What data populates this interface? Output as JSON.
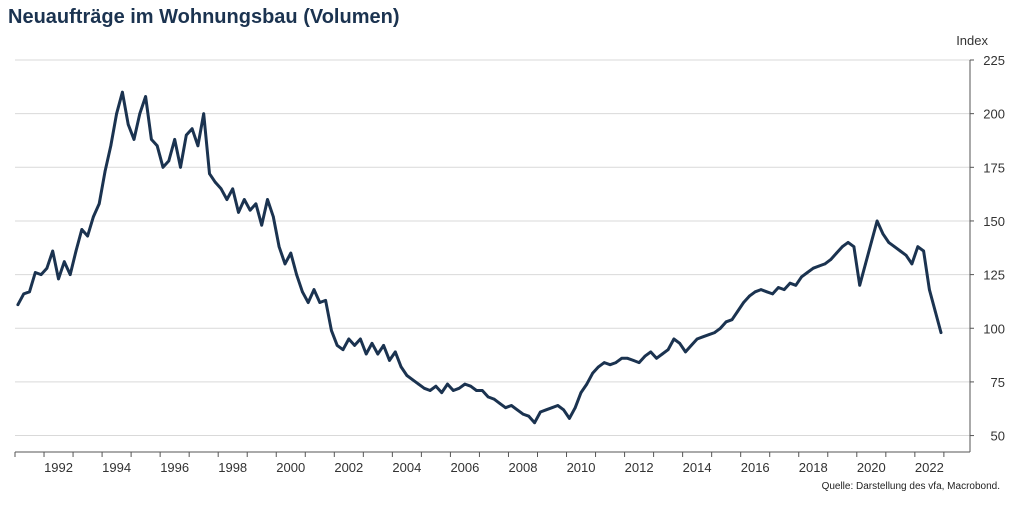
{
  "title": "Neuaufträge im Wohnungsbau (Volumen)",
  "source": "Quelle: Darstellung des vfa, Macrobond.",
  "colors": {
    "line": "#1b3350",
    "grid": "#d9d9d9",
    "title": "#1b3350"
  },
  "chart_data": {
    "type": "line",
    "title": "Neuaufträge im Wohnungsbau (Volumen)",
    "ylabel": "Index",
    "xlabel": "",
    "xlim": [
      1991.0,
      2023.9
    ],
    "ylim": [
      47,
      225
    ],
    "yticks": [
      "225",
      "200",
      "175",
      "150",
      "125",
      "100",
      "75",
      "50"
    ],
    "xticks": [
      "1992",
      "1994",
      "1996",
      "1998",
      "2000",
      "2002",
      "2004",
      "2006",
      "2008",
      "2010",
      "2012",
      "2014",
      "2016",
      "2018",
      "2020",
      "2022"
    ],
    "grid": true,
    "legend": "none",
    "series": [
      {
        "name": "",
        "x": [
          1991.1,
          1991.3,
          1991.5,
          1991.7,
          1991.9,
          1992.1,
          1992.3,
          1992.5,
          1992.7,
          1992.9,
          1993.1,
          1993.3,
          1993.5,
          1993.7,
          1993.9,
          1994.1,
          1994.3,
          1994.5,
          1994.7,
          1994.9,
          1995.1,
          1995.3,
          1995.5,
          1995.7,
          1995.9,
          1996.1,
          1996.3,
          1996.5,
          1996.7,
          1996.9,
          1997.1,
          1997.3,
          1997.5,
          1997.7,
          1997.9,
          1998.1,
          1998.3,
          1998.5,
          1998.7,
          1998.9,
          1999.1,
          1999.3,
          1999.5,
          1999.7,
          1999.9,
          2000.1,
          2000.3,
          2000.5,
          2000.7,
          2000.9,
          2001.1,
          2001.3,
          2001.5,
          2001.7,
          2001.9,
          2002.1,
          2002.3,
          2002.5,
          2002.7,
          2002.9,
          2003.1,
          2003.3,
          2003.5,
          2003.7,
          2003.9,
          2004.1,
          2004.3,
          2004.5,
          2004.7,
          2004.9,
          2005.1,
          2005.3,
          2005.5,
          2005.7,
          2005.9,
          2006.1,
          2006.3,
          2006.5,
          2006.7,
          2006.9,
          2007.1,
          2007.3,
          2007.5,
          2007.7,
          2007.9,
          2008.1,
          2008.3,
          2008.5,
          2008.7,
          2008.9,
          2009.1,
          2009.3,
          2009.5,
          2009.7,
          2009.9,
          2010.1,
          2010.3,
          2010.5,
          2010.7,
          2010.9,
          2011.1,
          2011.3,
          2011.5,
          2011.7,
          2011.9,
          2012.1,
          2012.3,
          2012.5,
          2012.7,
          2012.9,
          2013.1,
          2013.3,
          2013.5,
          2013.7,
          2013.9,
          2014.1,
          2014.3,
          2014.5,
          2014.7,
          2014.9,
          2015.1,
          2015.3,
          2015.5,
          2015.7,
          2015.9,
          2016.1,
          2016.3,
          2016.5,
          2016.7,
          2016.9,
          2017.1,
          2017.3,
          2017.5,
          2017.7,
          2017.9,
          2018.1,
          2018.3,
          2018.5,
          2018.7,
          2018.9,
          2019.1,
          2019.3,
          2019.5,
          2019.7,
          2019.9,
          2020.1,
          2020.3,
          2020.5,
          2020.7,
          2020.9,
          2021.1,
          2021.3,
          2021.5,
          2021.7,
          2021.9,
          2022.1,
          2022.3,
          2022.5,
          2022.7,
          2022.9
        ],
        "values": [
          111,
          116,
          117,
          126,
          125,
          128,
          136,
          123,
          131,
          125,
          136,
          146,
          143,
          152,
          158,
          173,
          185,
          200,
          210,
          195,
          188,
          200,
          208,
          188,
          185,
          175,
          178,
          188,
          175,
          190,
          193,
          185,
          200,
          172,
          168,
          165,
          160,
          165,
          154,
          160,
          155,
          158,
          148,
          160,
          152,
          138,
          130,
          135,
          125,
          117,
          112,
          118,
          112,
          113,
          99,
          92,
          90,
          95,
          92,
          95,
          88,
          93,
          88,
          92,
          85,
          89,
          82,
          78,
          76,
          74,
          72,
          71,
          73,
          70,
          74,
          71,
          72,
          74,
          73,
          71,
          71,
          68,
          67,
          65,
          63,
          64,
          62,
          60,
          59,
          56,
          61,
          62,
          63,
          64,
          62,
          58,
          63,
          70,
          74,
          79,
          82,
          84,
          83,
          84,
          86,
          86,
          85,
          84,
          87,
          89,
          86,
          88,
          90,
          95,
          93,
          89,
          92,
          95,
          96,
          97,
          98,
          100,
          103,
          104,
          108,
          112,
          115,
          117,
          118,
          117,
          116,
          119,
          118,
          121,
          120,
          124,
          126,
          128,
          129,
          130,
          132,
          135,
          138,
          140,
          138,
          120,
          130,
          140,
          150,
          144,
          140,
          138,
          136,
          134,
          130,
          138,
          136,
          118,
          108,
          98
        ]
      }
    ]
  }
}
